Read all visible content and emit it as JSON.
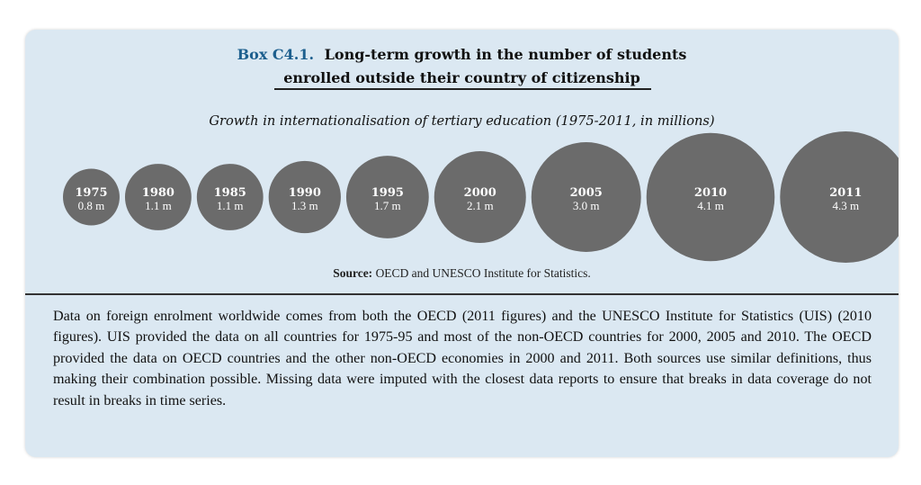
{
  "header": {
    "box_label": "Box C4.1.",
    "title_line1": "Long-term growth in the number of students",
    "title_line2": "enrolled outside their country of citizenship"
  },
  "chart_data": {
    "type": "bubble",
    "title": "Growth in internationalisation of tertiary education (1975-2011, in millions)",
    "unit": "m",
    "categories": [
      "1975",
      "1980",
      "1985",
      "1990",
      "1995",
      "2000",
      "2005",
      "2010",
      "2011"
    ],
    "values": [
      0.8,
      1.1,
      1.1,
      1.3,
      1.7,
      2.1,
      3.0,
      4.1,
      4.3
    ],
    "value_labels": [
      "0.8 m",
      "1.1 m",
      "1.1 m",
      "1.3 m",
      "1.7 m",
      "2.1 m",
      "3.0 m",
      "4.1 m",
      "4.3 m"
    ],
    "bubble_color": "#6b6b6b",
    "label_color": "#ffffff"
  },
  "source": {
    "label": "Source:",
    "text": "OECD and UNESCO Institute for Statistics."
  },
  "note": {
    "text": "Data on foreign enrolment worldwide comes from both the OECD (2011 figures) and the UNESCO Institute for Statistics (UIS) (2010 figures). UIS provided the data on all countries for 1975-95 and most of the non-OECD countries for 2000, 2005 and 2010. The OECD provided the data on OECD countries and the other non-OECD economies in 2000 and 2011. Both sources use similar definitions, thus making their combination possible. Missing data were imputed with the closest data reports to ensure that breaks in data coverage do not result in breaks in time series."
  },
  "colors": {
    "panel_background": "#dbe8f2",
    "box_label": "#1d5f8e"
  }
}
